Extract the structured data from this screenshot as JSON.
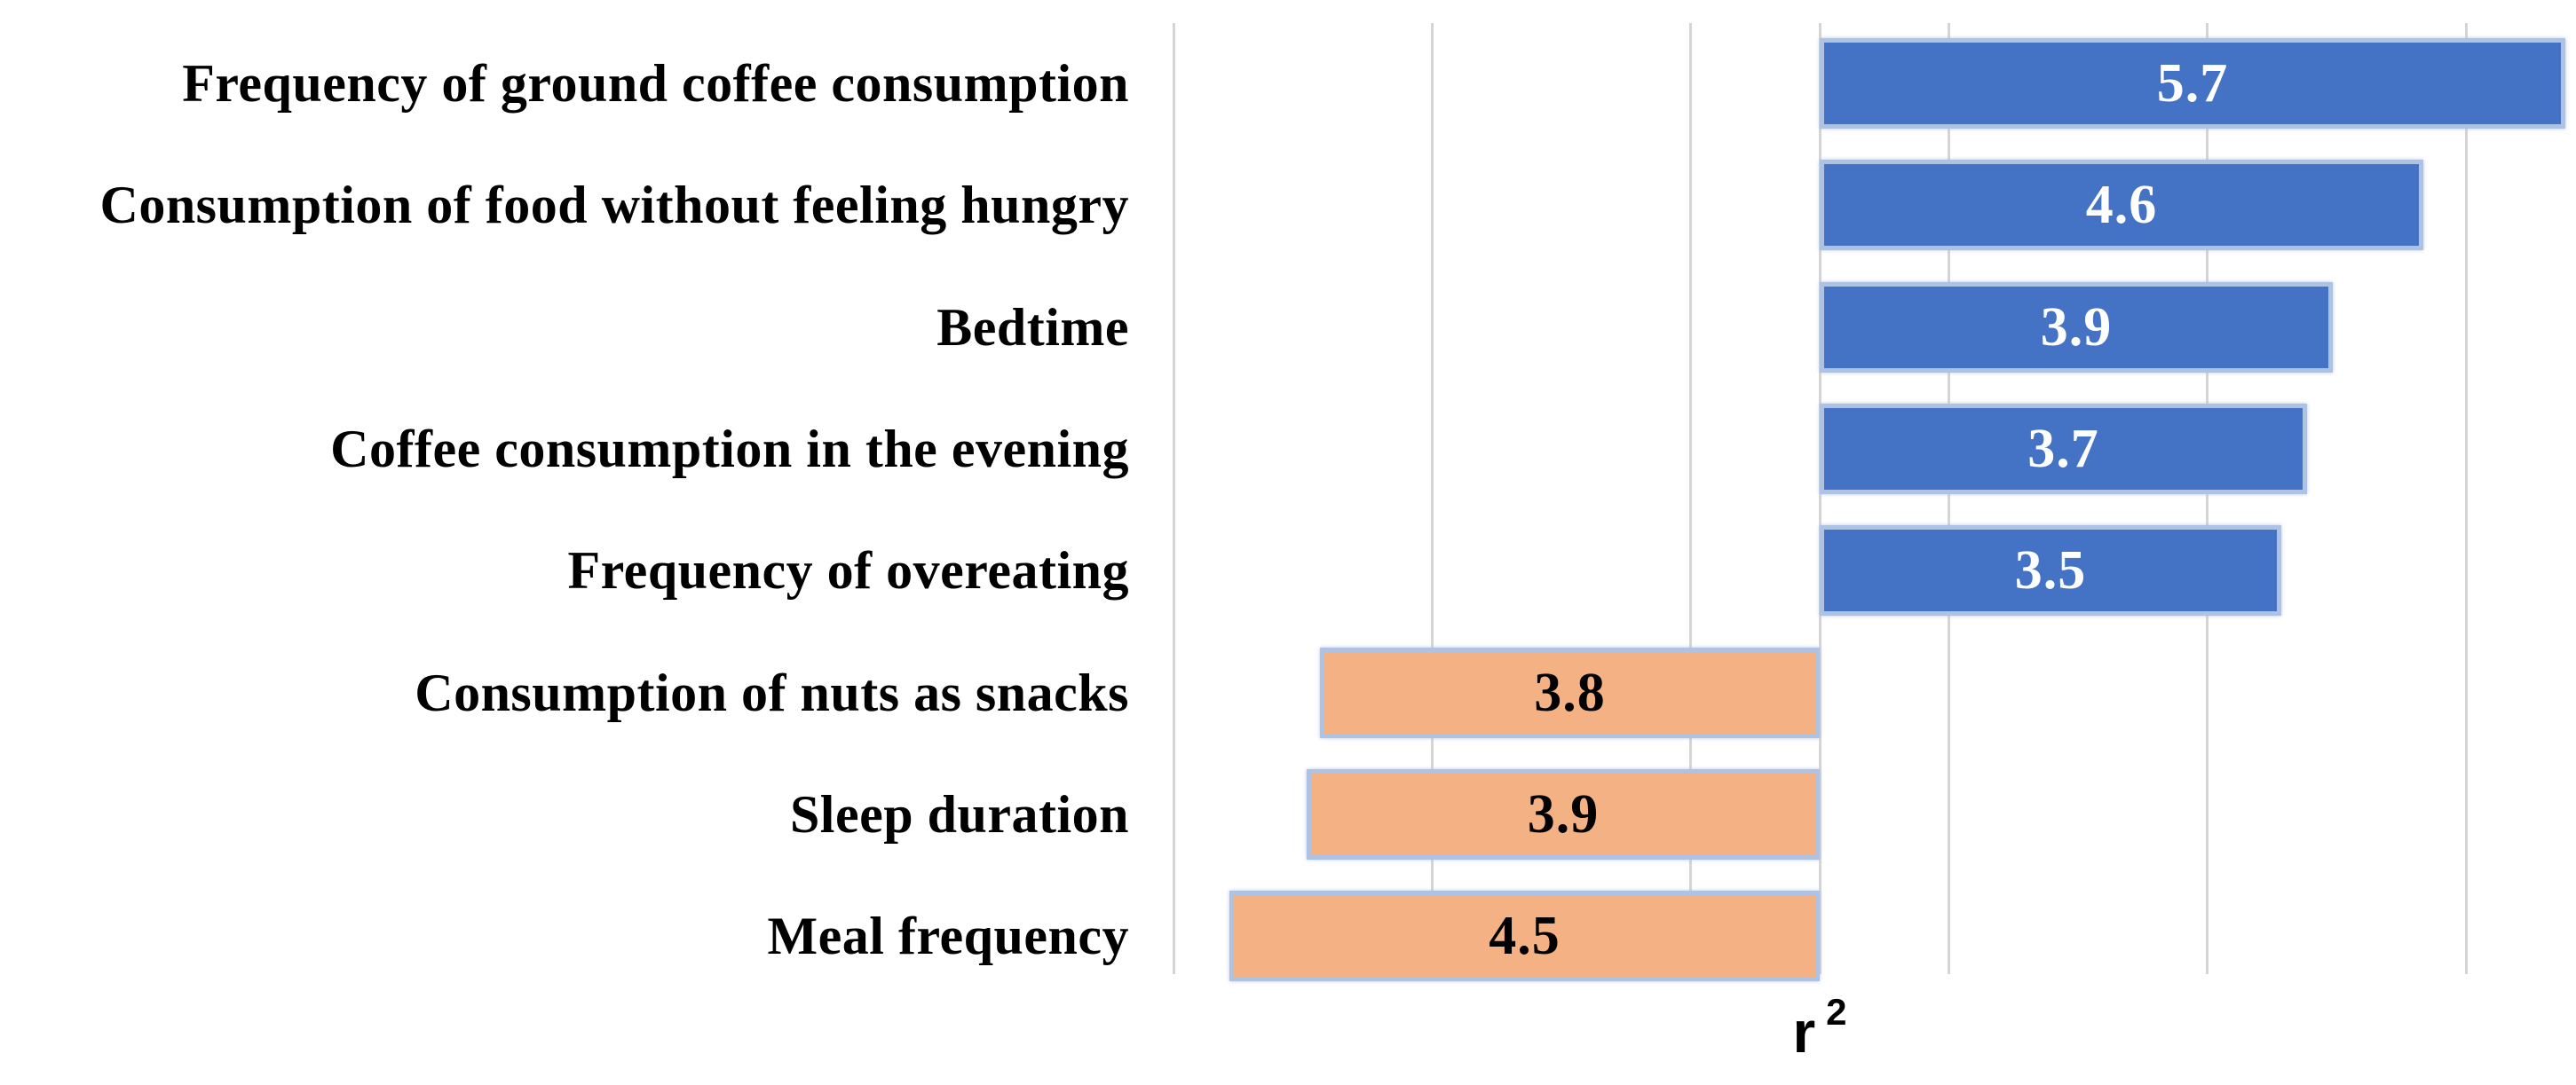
{
  "chart_data": {
    "type": "bar",
    "orientation": "horizontal",
    "diverging": true,
    "title": "",
    "xlabel": "r²",
    "xlabel_base": "r",
    "xlabel_sup": "2",
    "x_axis": {
      "xlim": [
        -5.05,
        5.85
      ],
      "gridline_values": [
        -5,
        -3,
        -1,
        0,
        1,
        3,
        5
      ],
      "tick_labels_visible": false,
      "grid": true
    },
    "categories": [
      "Frequency of ground coffee consumption",
      "Consumption of food without feeling hungry",
      "Bedtime",
      "Coffee consumption in the evening",
      "Frequency of overeating",
      "Consumption of nuts as snacks",
      "Sleep duration",
      "Meal frequency"
    ],
    "rows": [
      {
        "label": "Frequency of ground coffee consumption",
        "value": 5.7,
        "value_label": "5.7",
        "direction": "right",
        "bar_color": "#4472C4",
        "value_text_color": "#FFFFFF"
      },
      {
        "label": "Consumption of food without feeling hungry",
        "value": 4.6,
        "value_label": "4.6",
        "direction": "right",
        "bar_color": "#4472C4",
        "value_text_color": "#FFFFFF"
      },
      {
        "label": "Bedtime",
        "value": 3.9,
        "value_label": "3.9",
        "direction": "right",
        "bar_color": "#4472C4",
        "value_text_color": "#FFFFFF"
      },
      {
        "label": "Coffee consumption in the evening",
        "value": 3.7,
        "value_label": "3.7",
        "direction": "right",
        "bar_color": "#4472C4",
        "value_text_color": "#FFFFFF"
      },
      {
        "label": "Frequency of overeating",
        "value": 3.5,
        "value_label": "3.5",
        "direction": "right",
        "bar_color": "#4472C4",
        "value_text_color": "#FFFFFF"
      },
      {
        "label": "Consumption of nuts as snacks",
        "value": 3.8,
        "value_label": "3.8",
        "direction": "left",
        "bar_color": "#F4B183",
        "value_text_color": "#000000"
      },
      {
        "label": "Sleep duration",
        "value": 3.9,
        "value_label": "3.9",
        "direction": "left",
        "bar_color": "#F4B183",
        "value_text_color": "#000000"
      },
      {
        "label": "Meal frequency",
        "value": 4.5,
        "value_label": "4.5",
        "direction": "left",
        "bar_color": "#F4B183",
        "value_text_color": "#000000"
      }
    ],
    "colors": {
      "right_series": "#4472C4",
      "left_series": "#F4B183",
      "bar_border": "#AEC3E4",
      "gridline": "#D5D5D5",
      "text": "#000000",
      "background": "#FFFFFF"
    }
  }
}
